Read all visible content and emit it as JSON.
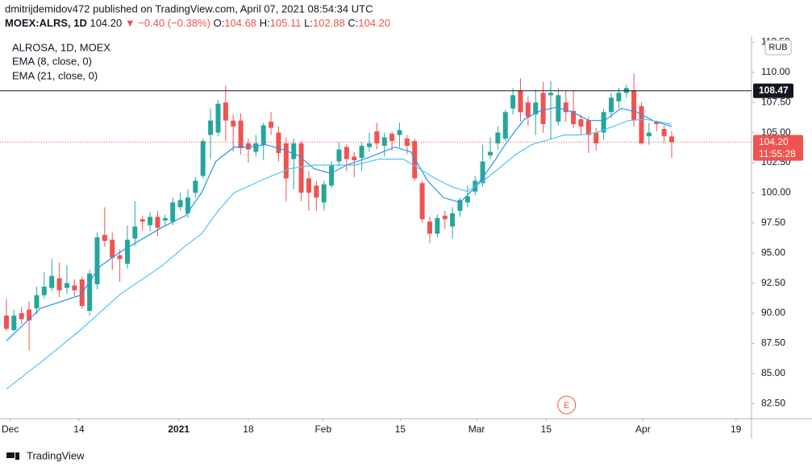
{
  "chart_data": {
    "type": "candlestick",
    "published": "dmitrijdemidov472 published on TradingView.com, April 07, 2021 08:54:34 UTC",
    "symbol": "MOEX:ALRS, 1D",
    "last": "104.20",
    "change": "▼ −0.40 (−0.38%)",
    "ohlc_labels": [
      "O:",
      "H:",
      "L:",
      "C:"
    ],
    "ohlc_values": [
      "104.68",
      "105.11",
      "102.88",
      "104.20"
    ],
    "legend_title": "ALROSA, 1D, MOEX",
    "currency": "RUB",
    "footer": "TradingView",
    "up_color": "#26a69a",
    "down_color": "#ef5350",
    "open": [
      89.8,
      88.6,
      90.0,
      90.3,
      90.4,
      91.5,
      92.1,
      92.9,
      92.1,
      92.3,
      92.8,
      90.2,
      92.4,
      96.5,
      96.1,
      94.8,
      94.1,
      96.2,
      97.8,
      97.3,
      98.0,
      97.7,
      97.6,
      98.8,
      98.3,
      100.0,
      101.4,
      104.8,
      105.0,
      107.5,
      106.0,
      106.0,
      104.1,
      103.4,
      104.0,
      105.9,
      105.0,
      104.1,
      102.8,
      104.1,
      101.2,
      100.6,
      99.2,
      100.6,
      102.6,
      103.8,
      103.0,
      102.9,
      103.8,
      105.1,
      103.9,
      104.9,
      104.8,
      104.5,
      104.3,
      100.8,
      97.6,
      96.6,
      98.1,
      97.2,
      98.5,
      99.2,
      100.1,
      100.8,
      103.1,
      104.1,
      104.5,
      107.0,
      108.5,
      107.5,
      106.5,
      108.3,
      108.1,
      105.9,
      107.5,
      106.8,
      106.1,
      106.0,
      105.0,
      105.0,
      106.7,
      107.6,
      108.3,
      108.5,
      107.2,
      104.7,
      105.9,
      105.3,
      104.68
    ],
    "high": [
      91.2,
      90.3,
      90.5,
      91.0,
      92.2,
      93.4,
      94.5,
      94.2,
      94.0,
      92.8,
      93.0,
      93.6,
      96.7,
      98.8,
      96.7,
      95.3,
      97.3,
      99.3,
      98.1,
      98.4,
      98.5,
      98.2,
      99.6,
      100.0,
      100.3,
      101.3,
      104.5,
      107.0,
      107.7,
      108.9,
      106.5,
      106.6,
      104.5,
      104.8,
      105.8,
      106.7,
      105.5,
      104.6,
      104.5,
      104.3,
      101.8,
      101.0,
      101.0,
      102.6,
      104.2,
      104.0,
      103.4,
      104.2,
      105.0,
      105.8,
      105.0,
      105.1,
      105.8,
      104.8,
      104.5,
      101.0,
      98.0,
      98.2,
      98.5,
      98.8,
      99.6,
      100.6,
      101.4,
      104.0,
      104.6,
      105.5,
      106.9,
      108.7,
      109.5,
      108.0,
      108.6,
      109.2,
      109.3,
      108.7,
      108.5,
      108.5,
      106.5,
      106.3,
      105.4,
      107.0,
      108.3,
      108.7,
      109.0,
      109.9,
      107.5,
      105.8,
      106.0,
      105.6,
      105.11
    ],
    "low": [
      88.5,
      88.5,
      89.1,
      86.9,
      89.9,
      91.2,
      91.8,
      91.3,
      91.6,
      91.4,
      90.4,
      89.8,
      92.0,
      95.5,
      93.6,
      92.6,
      93.7,
      95.6,
      96.9,
      96.8,
      96.4,
      97.3,
      97.3,
      98.5,
      97.9,
      99.6,
      101.2,
      102.8,
      104.7,
      104.3,
      103.4,
      103.2,
      102.5,
      103.0,
      102.7,
      104.8,
      102.6,
      99.3,
      100.3,
      99.3,
      98.5,
      98.5,
      98.5,
      100.4,
      102.2,
      101.8,
      101.3,
      101.8,
      103.4,
      103.6,
      103.0,
      103.5,
      103.8,
      103.2,
      101.0,
      97.5,
      95.8,
      96.3,
      97.0,
      96.2,
      98.0,
      98.8,
      99.8,
      100.5,
      102.8,
      103.6,
      104.3,
      106.5,
      105.9,
      105.6,
      104.8,
      105.0,
      104.4,
      105.6,
      105.9,
      105.4,
      104.8,
      103.3,
      103.5,
      104.4,
      106.2,
      107.0,
      107.9,
      105.5,
      104.0,
      104.0,
      105.1,
      104.2,
      102.88
    ],
    "close": [
      88.7,
      89.8,
      89.5,
      89.4,
      91.5,
      92.2,
      93.1,
      91.9,
      92.5,
      91.9,
      90.6,
      93.3,
      96.3,
      96.0,
      94.6,
      94.5,
      96.1,
      97.2,
      97.6,
      98.0,
      97.1,
      97.9,
      99.2,
      99.4,
      99.6,
      101.0,
      104.3,
      106.0,
      107.4,
      106.0,
      105.5,
      103.7,
      103.6,
      104.1,
      105.6,
      105.4,
      103.3,
      101.2,
      104.1,
      100.0,
      100.0,
      99.6,
      100.7,
      102.3,
      103.6,
      102.8,
      102.7,
      103.9,
      104.1,
      104.1,
      104.6,
      104.3,
      105.2,
      103.9,
      101.2,
      97.8,
      96.6,
      97.9,
      97.8,
      98.3,
      99.4,
      99.7,
      101.0,
      102.6,
      103.4,
      105.0,
      106.7,
      108.1,
      106.7,
      106.3,
      107.5,
      105.7,
      108.3,
      108.1,
      106.7,
      105.7,
      105.5,
      104.8,
      104.1,
      106.7,
      107.9,
      108.3,
      108.7,
      106.0,
      104.1,
      105.0,
      105.7,
      104.7,
      104.2
    ],
    "series": [
      {
        "name": "EMA (8, close, 0)",
        "color": "#2196f3",
        "x": [
          0,
          4.5,
          9.8,
          12.4,
          15.1,
          17.8,
          20.5,
          23.7,
          25.8,
          27.7,
          30.1,
          32.2,
          34.3,
          36.5,
          38.6,
          40.7,
          42.9,
          45.0,
          48.2,
          51.4,
          53.5,
          55.7,
          57.8,
          60.0,
          62.1,
          64.2,
          66.3,
          68.5,
          70.6,
          72.7,
          74.9,
          77.0,
          79.1,
          81.3,
          83.4,
          85.5,
          88
        ],
        "values": [
          87.7,
          90.4,
          91.5,
          93.9,
          95.1,
          96.1,
          97.1,
          98.1,
          100.0,
          102.6,
          103.8,
          103.8,
          104.0,
          103.6,
          103.1,
          102.0,
          101.6,
          102.3,
          103.0,
          103.8,
          103.4,
          101.0,
          99.6,
          99.2,
          100.5,
          102.3,
          104.3,
          106.1,
          106.8,
          107.1,
          106.7,
          106.0,
          106.0,
          107.0,
          106.7,
          106.0,
          105.5
        ]
      },
      {
        "name": "EMA (21, close, 0)",
        "color": "#4fc3f7",
        "x": [
          0,
          4.5,
          9.8,
          15.1,
          20.5,
          23.7,
          25.8,
          28.0,
          30.1,
          32.2,
          34.3,
          37.5,
          40.7,
          42.9,
          46.1,
          49.3,
          52.5,
          54.6,
          56.7,
          58.9,
          61.0,
          63.1,
          65.3,
          67.4,
          69.5,
          71.7,
          73.8,
          75.9,
          78.1,
          80.2,
          82.3,
          84.5,
          88
        ],
        "values": [
          83.7,
          85.9,
          88.6,
          91.6,
          93.9,
          95.6,
          96.6,
          98.5,
          100.0,
          100.6,
          101.2,
          102.0,
          102.3,
          102.3,
          102.3,
          102.8,
          102.8,
          102.0,
          101.2,
          100.5,
          100.1,
          101.0,
          102.1,
          103.2,
          104.0,
          104.4,
          104.8,
          104.8,
          105.0,
          105.5,
          106.0,
          106.1,
          105.7
        ]
      }
    ],
    "hline": {
      "value": 108.47,
      "label": "108.47",
      "color": "#131722"
    },
    "price_line": {
      "value": 104.2,
      "label": "104.20",
      "color": "#ef5350"
    },
    "countdown": "11:55:28",
    "events": [
      {
        "x": 74.1,
        "label": "E"
      }
    ],
    "xlim": [
      -0.85,
      98.56
    ],
    "ylim": [
      81.24,
      113.0
    ],
    "xticks": [
      {
        "value": 0.5,
        "label": "Dec"
      },
      {
        "value": 9.6,
        "label": "14"
      },
      {
        "value": 22.8,
        "label": "2021",
        "bold": true
      },
      {
        "value": 32.0,
        "label": "18"
      },
      {
        "value": 41.9,
        "label": "Feb"
      },
      {
        "value": 52.1,
        "label": "15"
      },
      {
        "value": 62.2,
        "label": "Mar"
      },
      {
        "value": 71.4,
        "label": "15"
      },
      {
        "value": 84.2,
        "label": "Apr"
      },
      {
        "value": 96.5,
        "label": "19"
      }
    ],
    "yticks": [
      {
        "value": 82.5,
        "label": "82.50"
      },
      {
        "value": 85,
        "label": "85.00"
      },
      {
        "value": 87.5,
        "label": "87.50"
      },
      {
        "value": 90,
        "label": "90.00"
      },
      {
        "value": 92.5,
        "label": "92.50"
      },
      {
        "value": 95,
        "label": "95.00"
      },
      {
        "value": 97.5,
        "label": "97.50"
      },
      {
        "value": 100,
        "label": "100.00"
      },
      {
        "value": 102.5,
        "label": "102.50"
      },
      {
        "value": 105,
        "label": "105.00"
      },
      {
        "value": 107.5,
        "label": "107.50"
      },
      {
        "value": 110,
        "label": "110.00"
      },
      {
        "value": 112.5,
        "label": "112.50"
      }
    ],
    "grid": false
  }
}
